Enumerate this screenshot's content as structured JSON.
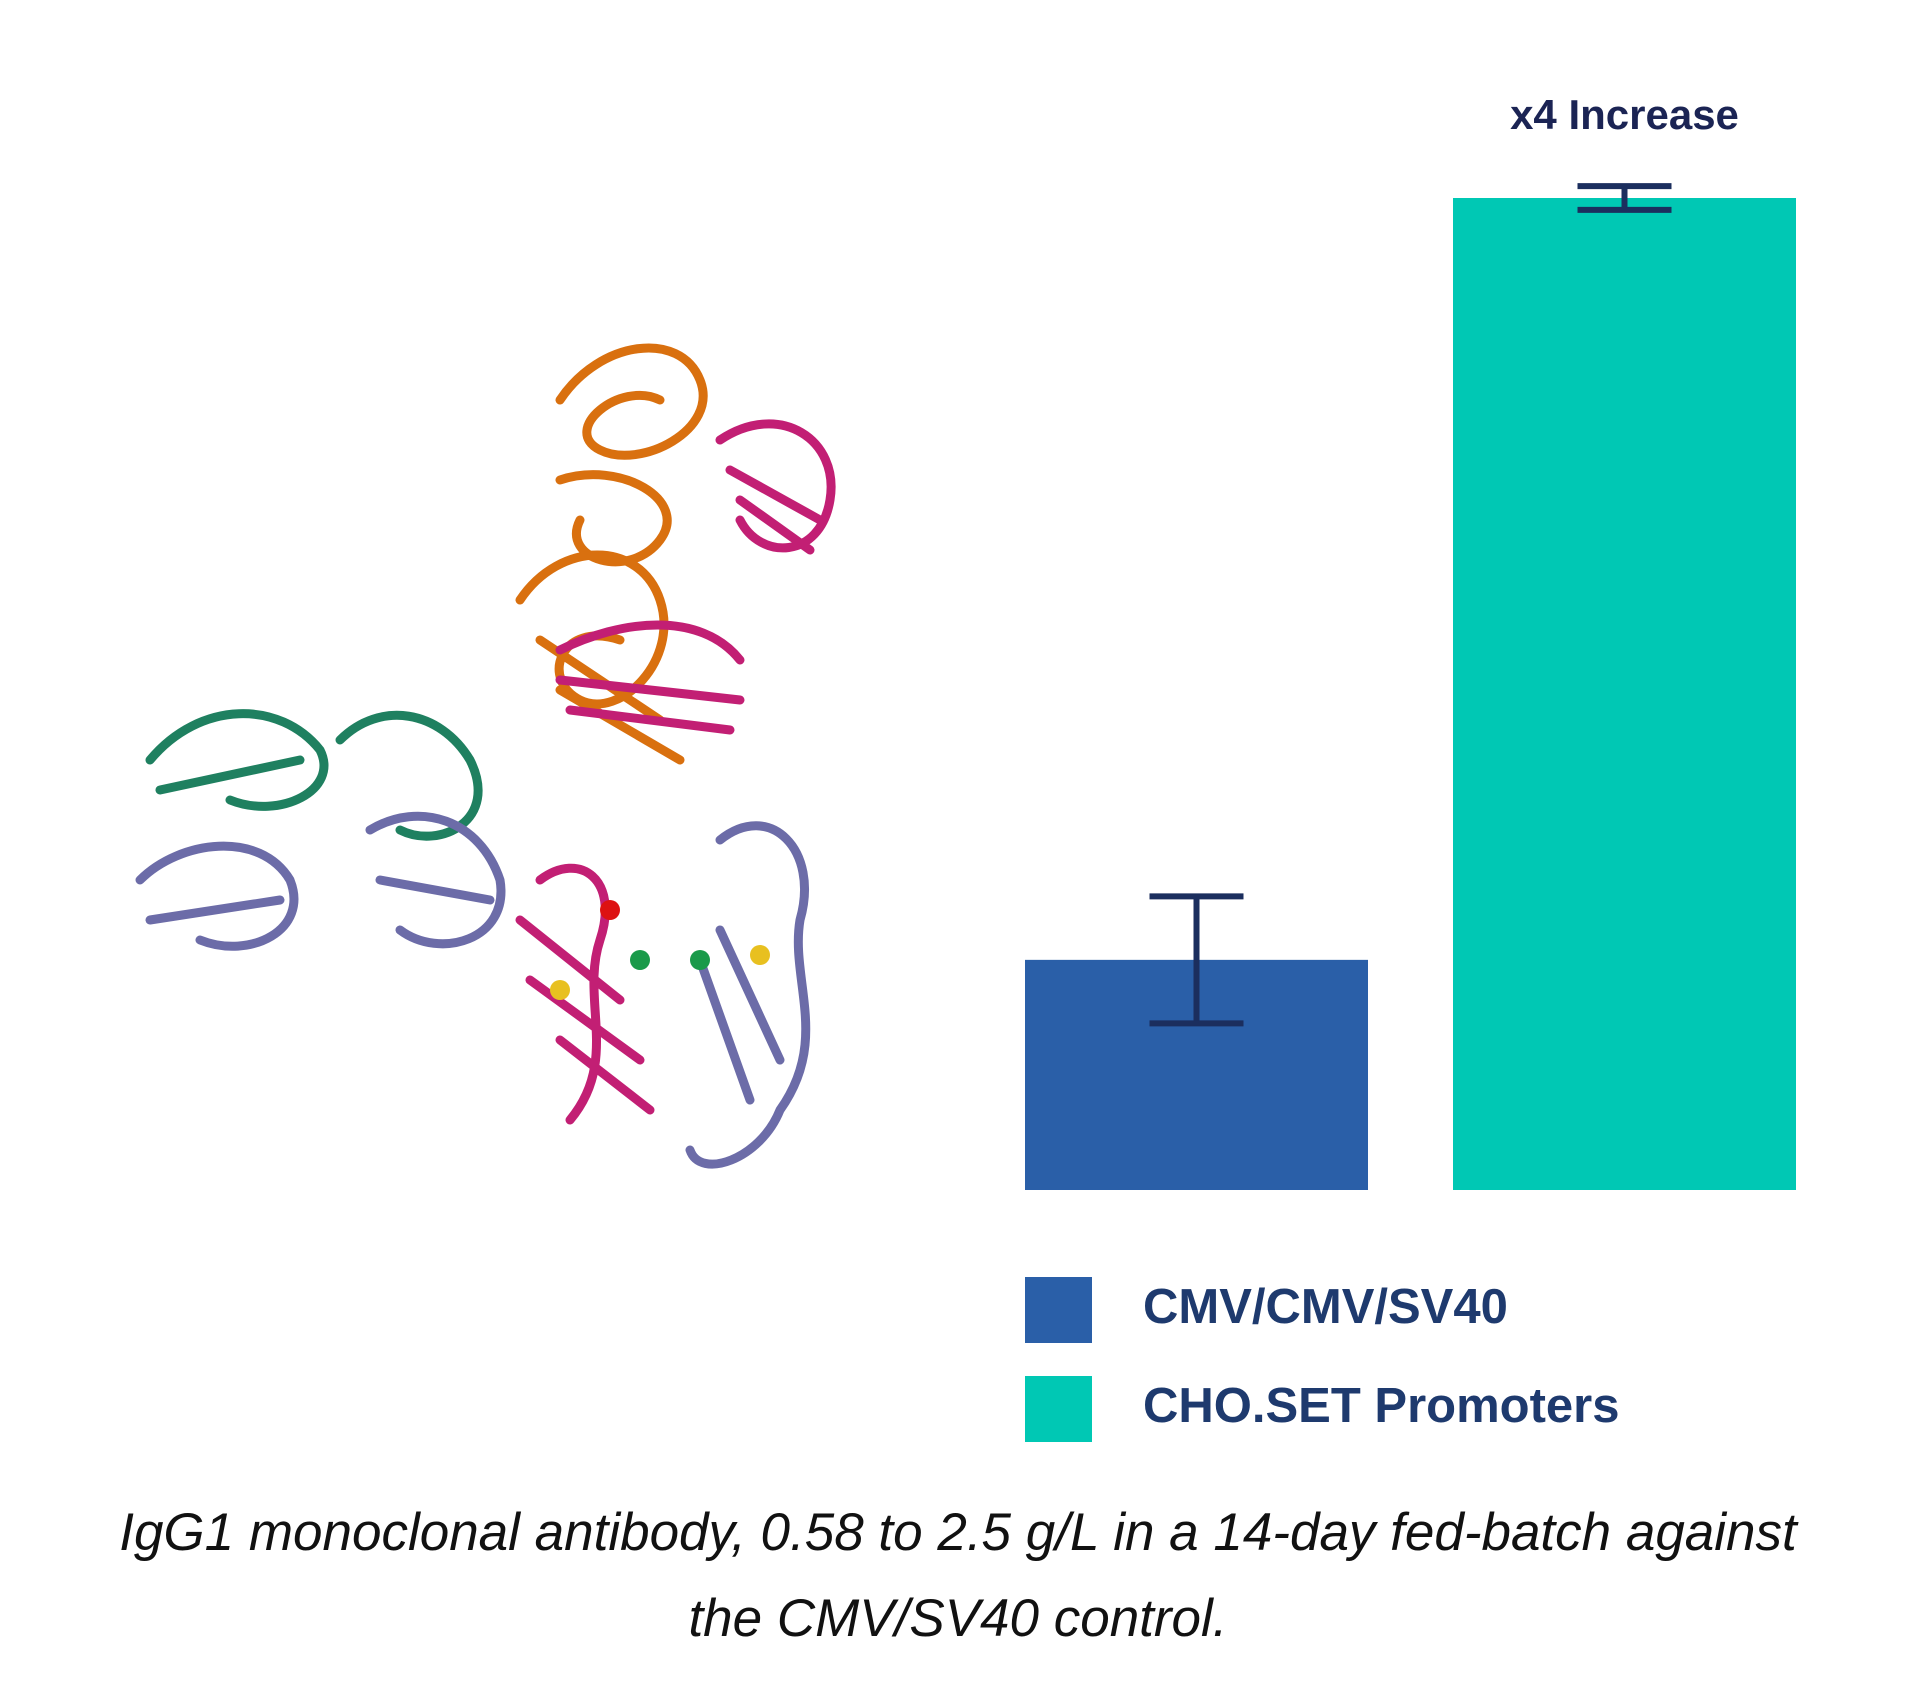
{
  "chart_data": {
    "type": "bar",
    "categories": [
      "CMV/CMV/SV40",
      "CHO.SET Promoters"
    ],
    "values": [
      0.58,
      2.5
    ],
    "errors": [
      0.16,
      0.03
    ],
    "colors": [
      "#2a5fa8",
      "#00c8b4"
    ],
    "error_color": "#1b2e5e",
    "annotation": "x4 Increase",
    "caption": "IgG1 monoclonal antibody, 0.58 to 2.5 g/L in a 14-day fed-batch against the CMV/SV40 control."
  }
}
